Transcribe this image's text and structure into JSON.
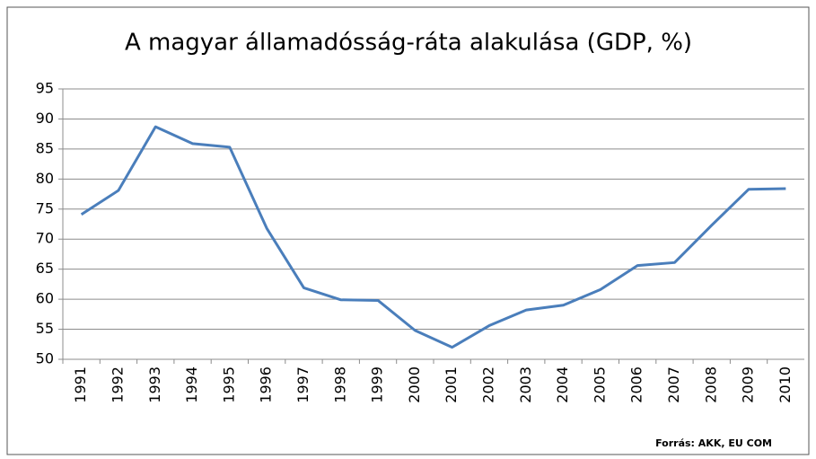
{
  "chart_data": {
    "type": "line",
    "title": "A magyar államadósság-ráta alakulása (GDP, %)",
    "annotation": "Forrás: AKK, EU COM",
    "categories": [
      "1991",
      "1992",
      "1993",
      "1994",
      "1995",
      "1996",
      "1997",
      "1998",
      "1999",
      "2000",
      "2001",
      "2002",
      "2003",
      "2004",
      "2005",
      "2006",
      "2007",
      "2008",
      "2009",
      "2010"
    ],
    "values": [
      74.1,
      78.1,
      88.7,
      85.9,
      85.3,
      71.8,
      61.9,
      59.9,
      59.8,
      54.8,
      52.0,
      55.6,
      58.2,
      59.0,
      61.6,
      65.6,
      66.1,
      72.3,
      78.3,
      78.4
    ],
    "color": "#4a7ebb",
    "ylim": [
      50,
      95
    ],
    "yticks": [
      50,
      55,
      60,
      65,
      70,
      75,
      80,
      85,
      90,
      95
    ],
    "grid": true
  }
}
